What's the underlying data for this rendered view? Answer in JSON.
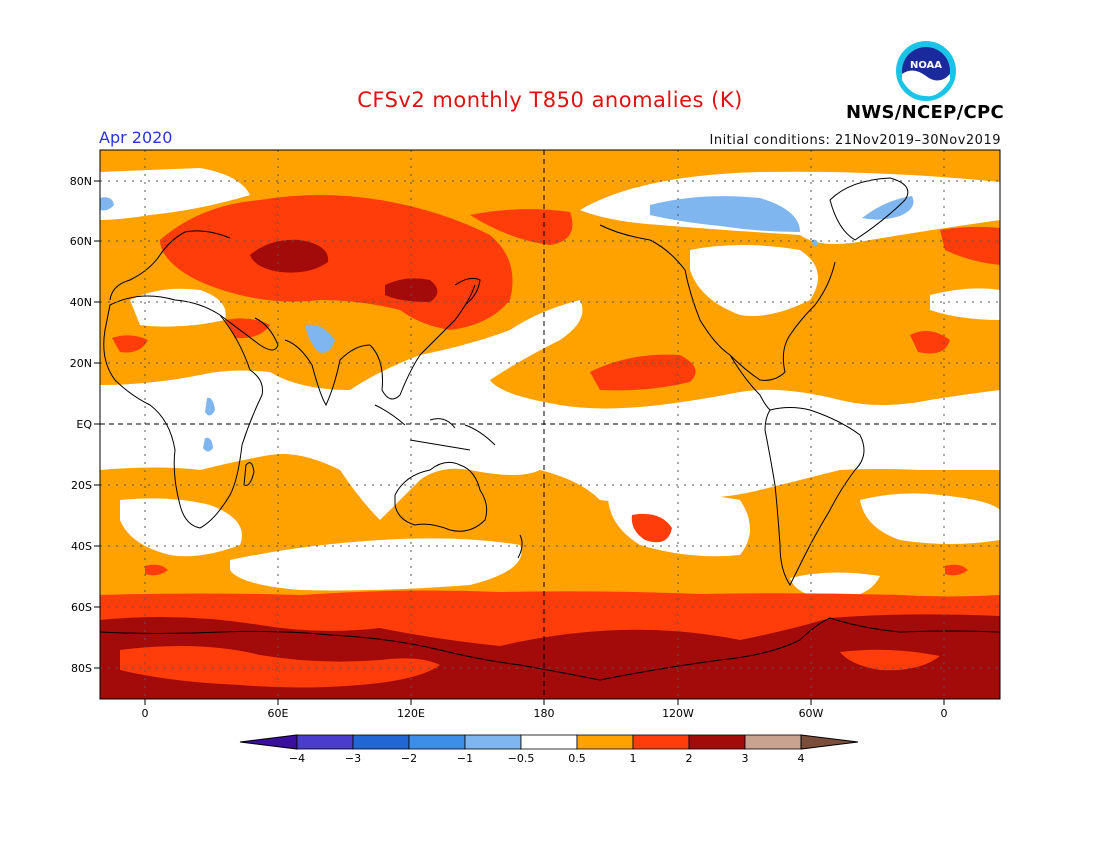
{
  "header": {
    "title": "CFSv2 monthly T850 anomalies (K)",
    "month": "Apr 2020",
    "initial_conditions": "Initial conditions: 21Nov2019–30Nov2019",
    "agency": "NWS/NCEP/CPC",
    "logo_text": "NOAA"
  },
  "axes": {
    "lat_labels": [
      "80N",
      "60N",
      "40N",
      "20N",
      "EQ",
      "20S",
      "40S",
      "60S",
      "80S"
    ],
    "lon_labels": [
      "0",
      "60E",
      "120E",
      "180",
      "120W",
      "60W",
      "0"
    ]
  },
  "colorbar": {
    "labels": [
      "−4",
      "−3",
      "−2",
      "−1",
      "−0.5",
      "0.5",
      "1",
      "2",
      "3",
      "4"
    ],
    "colors": [
      "#3a0fa0",
      "#4a3ccc",
      "#2266d6",
      "#3d8ee8",
      "#7fb6f0",
      "#ffffff",
      "#ffa200",
      "#ff3d0a",
      "#a30a0a",
      "#c9a290",
      "#7a4e3a"
    ]
  },
  "colors": {
    "band_0_5_to_1": "#ffa200",
    "band_1_to_2": "#ff3d0a",
    "band_2_to_3": "#a30a0a",
    "band_neg1_to_neg0_5": "#7fb6f0",
    "title": "#e01010",
    "month": "#2a32e0"
  }
}
